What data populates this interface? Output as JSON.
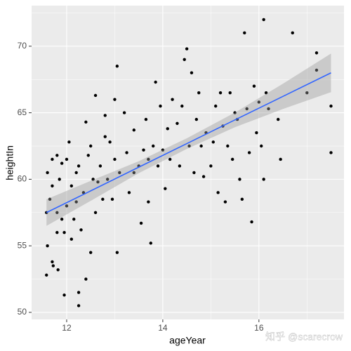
{
  "chart_data": {
    "type": "scatter",
    "x_label": "ageYear",
    "y_label": "heightIn",
    "watermark": "知乎 @scarecrow",
    "xlim": [
      11.27,
      17.77
    ],
    "ylim": [
      49.47,
      73.05
    ],
    "xticks": [
      12,
      14,
      16
    ],
    "yticks": [
      50,
      55,
      60,
      65,
      70
    ],
    "minor_xticks": [
      13,
      15,
      17
    ],
    "minor_yticks": [
      52.5,
      57.5,
      62.5,
      67.5,
      72.5
    ],
    "grid": true,
    "color": "#000000",
    "x": [
      11.58,
      11.6,
      11.6,
      11.58,
      11.65,
      11.7,
      11.7,
      11.7,
      11.72,
      11.8,
      11.8,
      11.8,
      11.82,
      11.85,
      11.9,
      11.9,
      11.95,
      11.95,
      12.0,
      12.0,
      12.05,
      12.1,
      12.1,
      12.15,
      12.2,
      12.2,
      12.25,
      12.25,
      12.25,
      12.3,
      12.35,
      12.4,
      12.4,
      12.45,
      12.5,
      12.5,
      12.55,
      12.6,
      12.6,
      12.65,
      12.7,
      12.75,
      12.8,
      12.8,
      12.85,
      12.9,
      12.95,
      13.0,
      13.0,
      13.05,
      13.05,
      13.1,
      13.2,
      13.25,
      13.3,
      13.4,
      13.4,
      13.5,
      13.55,
      13.6,
      13.65,
      13.7,
      13.7,
      13.75,
      13.8,
      13.85,
      13.9,
      13.95,
      14.0,
      14.05,
      14.1,
      14.15,
      14.2,
      14.3,
      14.35,
      14.4,
      14.45,
      14.5,
      14.55,
      14.6,
      14.65,
      14.7,
      14.75,
      14.8,
      14.85,
      14.9,
      15.0,
      15.05,
      15.1,
      15.15,
      15.2,
      15.25,
      15.3,
      15.35,
      15.4,
      15.45,
      15.5,
      15.55,
      15.6,
      15.65,
      15.7,
      15.75,
      15.8,
      15.85,
      15.9,
      15.95,
      16.0,
      16.05,
      16.1,
      16.1,
      16.15,
      16.2,
      16.4,
      16.45,
      16.7,
      17.0,
      17.2,
      17.2,
      17.5,
      17.5
    ],
    "y": [
      57.5,
      60.5,
      55,
      52.8,
      58.5,
      59.5,
      61.5,
      53.8,
      53.5,
      61.8,
      57.5,
      56,
      53.2,
      60,
      61.2,
      57,
      56,
      51.3,
      58,
      61.5,
      62.8,
      55.5,
      59.5,
      57,
      60.5,
      58.3,
      61,
      51.5,
      50.5,
      56.2,
      59,
      64.3,
      52.5,
      61.8,
      62.5,
      54.5,
      60,
      66.3,
      57.5,
      59.8,
      61,
      58.5,
      64.8,
      63.2,
      60,
      62.8,
      58.5,
      66,
      61.5,
      68.5,
      54.5,
      60.5,
      65,
      62,
      59,
      63.7,
      60.5,
      61,
      56.7,
      62.2,
      64.5,
      58.3,
      61.5,
      55.2,
      62.5,
      67.3,
      61,
      65.5,
      62.2,
      59.3,
      63.8,
      61.5,
      66,
      64.2,
      61,
      65.5,
      69,
      69.8,
      62.5,
      68,
      60.5,
      64.5,
      66.5,
      62.5,
      60.2,
      63.5,
      61,
      62.8,
      65.5,
      59,
      66.5,
      64,
      58.3,
      62.5,
      66.5,
      61.5,
      65,
      64.5,
      60,
      58.5,
      71,
      65.3,
      62,
      56.8,
      67,
      63.5,
      65.8,
      62.5,
      72,
      60,
      66.5,
      65.3,
      64.5,
      61.5,
      71,
      66.5,
      68.2,
      69.5,
      65.5,
      62
    ],
    "fit": {
      "color": "#3366FF",
      "band_color": "#999999",
      "x": [
        11.58,
        12.5,
        13.5,
        14.5,
        15.5,
        16.5,
        17.5
      ],
      "values": [
        57.5,
        59.13,
        60.91,
        62.68,
        64.46,
        66.23,
        68.0
      ],
      "lower": [
        56.5,
        58.38,
        60.46,
        62.28,
        63.91,
        65.28,
        66.55
      ],
      "upper": [
        58.5,
        59.88,
        61.36,
        63.08,
        65.01,
        67.18,
        69.45
      ]
    }
  }
}
